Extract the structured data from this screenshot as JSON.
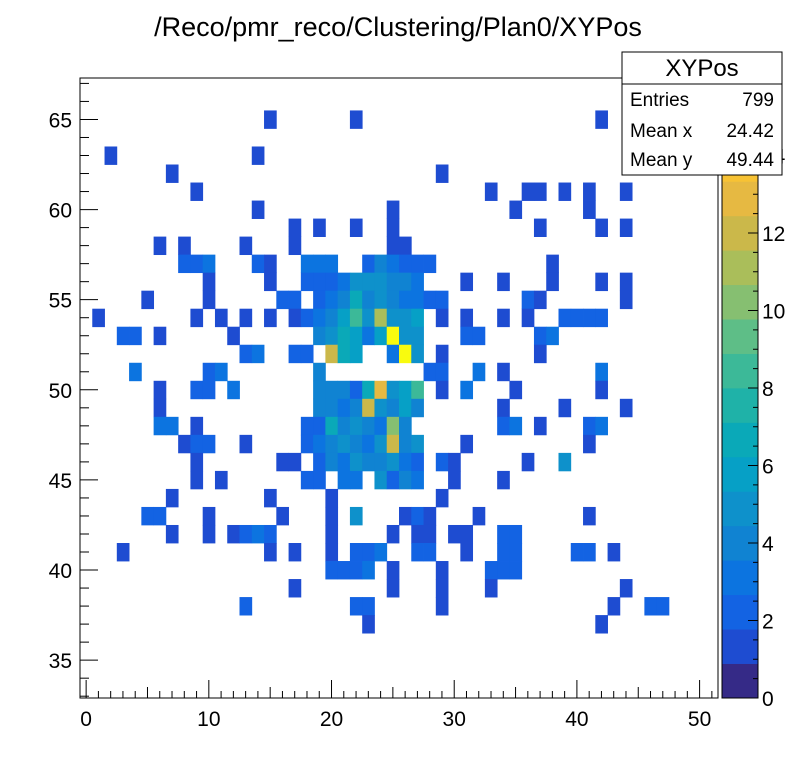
{
  "chart_data": {
    "type": "heatmap",
    "title": "/Reco/pmr_reco/Clustering/Plan0/XYPos",
    "xlim": [
      -0.5,
      51.5
    ],
    "ylim": [
      32.9,
      67.3
    ],
    "x_ticks": [
      0,
      10,
      20,
      30,
      40,
      50
    ],
    "y_ticks": [
      35,
      40,
      45,
      50,
      55,
      60,
      65
    ],
    "z_range": [
      0,
      16
    ],
    "z_ticks": [
      0,
      2,
      4,
      6,
      8,
      10,
      12,
      14
    ],
    "palette": [
      "#352a87",
      "#1e4cd1",
      "#1363e3",
      "#0c74e0",
      "#1083d2",
      "#0e91cb",
      "#06a0c6",
      "#0aa9b8",
      "#1fb2a8",
      "#3cb998",
      "#5ebe87",
      "#86bf71",
      "#aabe5a",
      "#cbb84a",
      "#e6b942",
      "#f7c234",
      "#f9e018",
      "#f9fb0e"
    ],
    "stats": {
      "name": "XYPos",
      "entries_label": "Entries",
      "entries": "799",
      "meanx_label": "Mean x",
      "meanx": "24.42",
      "meany_label": "Mean y",
      "meany": "49.44"
    },
    "cells": [
      [
        15,
        65,
        1
      ],
      [
        22,
        65,
        1
      ],
      [
        42,
        65,
        1
      ],
      [
        2,
        63,
        1
      ],
      [
        14,
        63,
        1
      ],
      [
        7,
        62,
        1
      ],
      [
        29,
        62,
        1
      ],
      [
        9,
        61,
        1
      ],
      [
        33,
        61,
        1
      ],
      [
        36,
        61,
        1
      ],
      [
        37,
        61,
        1
      ],
      [
        39,
        61,
        1
      ],
      [
        41,
        61,
        1
      ],
      [
        44,
        61,
        1
      ],
      [
        14,
        60,
        1
      ],
      [
        25,
        60,
        1
      ],
      [
        35,
        60,
        1
      ],
      [
        41,
        60,
        1
      ],
      [
        17,
        59,
        1
      ],
      [
        19,
        59,
        1
      ],
      [
        22,
        59,
        1
      ],
      [
        25,
        59,
        1
      ],
      [
        37,
        59,
        1
      ],
      [
        42,
        59,
        1
      ],
      [
        44,
        59,
        1
      ],
      [
        6,
        58,
        1
      ],
      [
        8,
        58,
        1
      ],
      [
        13,
        58,
        1
      ],
      [
        17,
        58,
        1
      ],
      [
        25,
        58,
        1
      ],
      [
        26,
        58,
        1
      ],
      [
        8,
        57,
        2
      ],
      [
        9,
        57,
        2
      ],
      [
        10,
        57,
        3
      ],
      [
        14,
        57,
        2
      ],
      [
        15,
        57,
        1
      ],
      [
        18,
        57,
        3
      ],
      [
        19,
        57,
        3
      ],
      [
        20,
        57,
        3
      ],
      [
        23,
        57,
        2
      ],
      [
        24,
        57,
        4
      ],
      [
        25,
        57,
        3
      ],
      [
        26,
        57,
        2
      ],
      [
        27,
        57,
        2
      ],
      [
        28,
        57,
        2
      ],
      [
        38,
        57,
        1
      ],
      [
        10,
        56,
        1
      ],
      [
        15,
        56,
        1
      ],
      [
        18,
        56,
        2
      ],
      [
        19,
        56,
        2
      ],
      [
        20,
        56,
        2
      ],
      [
        21,
        56,
        3
      ],
      [
        22,
        56,
        5
      ],
      [
        23,
        56,
        5
      ],
      [
        24,
        56,
        5
      ],
      [
        25,
        56,
        4
      ],
      [
        26,
        56,
        4
      ],
      [
        27,
        56,
        3
      ],
      [
        31,
        56,
        1
      ],
      [
        34,
        56,
        1
      ],
      [
        38,
        56,
        1
      ],
      [
        42,
        56,
        1
      ],
      [
        44,
        56,
        1
      ],
      [
        5,
        55,
        1
      ],
      [
        10,
        55,
        1
      ],
      [
        16,
        55,
        2
      ],
      [
        17,
        55,
        2
      ],
      [
        19,
        55,
        2
      ],
      [
        20,
        55,
        3
      ],
      [
        21,
        55,
        4
      ],
      [
        22,
        55,
        7
      ],
      [
        23,
        55,
        4
      ],
      [
        24,
        55,
        5
      ],
      [
        25,
        55,
        4
      ],
      [
        26,
        55,
        3
      ],
      [
        27,
        55,
        3
      ],
      [
        28,
        55,
        2
      ],
      [
        29,
        55,
        2
      ],
      [
        36,
        55,
        2
      ],
      [
        37,
        55,
        1
      ],
      [
        44,
        55,
        1
      ],
      [
        1,
        54,
        1
      ],
      [
        9,
        54,
        1
      ],
      [
        11,
        54,
        1
      ],
      [
        13,
        54,
        1
      ],
      [
        15,
        54,
        1
      ],
      [
        17,
        54,
        1
      ],
      [
        18,
        54,
        2
      ],
      [
        19,
        54,
        3
      ],
      [
        20,
        54,
        4
      ],
      [
        21,
        54,
        6
      ],
      [
        22,
        54,
        8
      ],
      [
        23,
        54,
        5
      ],
      [
        24,
        54,
        11
      ],
      [
        25,
        54,
        5
      ],
      [
        26,
        54,
        5
      ],
      [
        27,
        54,
        6
      ],
      [
        29,
        54,
        1
      ],
      [
        31,
        54,
        1
      ],
      [
        34,
        54,
        1
      ],
      [
        36,
        54,
        1
      ],
      [
        39,
        54,
        2
      ],
      [
        40,
        54,
        2
      ],
      [
        41,
        54,
        2
      ],
      [
        42,
        54,
        2
      ],
      [
        3,
        53,
        2
      ],
      [
        4,
        53,
        2
      ],
      [
        6,
        53,
        1
      ],
      [
        12,
        53,
        1
      ],
      [
        19,
        53,
        4
      ],
      [
        20,
        53,
        5
      ],
      [
        21,
        53,
        7
      ],
      [
        22,
        53,
        6
      ],
      [
        23,
        53,
        3
      ],
      [
        24,
        53,
        6
      ],
      [
        25,
        53,
        17
      ],
      [
        26,
        53,
        5
      ],
      [
        27,
        53,
        5
      ],
      [
        31,
        53,
        2
      ],
      [
        32,
        53,
        2
      ],
      [
        37,
        53,
        2
      ],
      [
        38,
        53,
        3
      ],
      [
        13,
        52,
        2
      ],
      [
        14,
        52,
        3
      ],
      [
        17,
        52,
        2
      ],
      [
        18,
        52,
        2
      ],
      [
        20,
        52,
        12
      ],
      [
        21,
        52,
        7
      ],
      [
        22,
        52,
        6
      ],
      [
        25,
        52,
        3
      ],
      [
        26,
        52,
        17
      ],
      [
        27,
        52,
        5
      ],
      [
        29,
        52,
        1
      ],
      [
        37,
        52,
        1
      ],
      [
        4,
        51,
        3
      ],
      [
        10,
        51,
        2
      ],
      [
        11,
        51,
        3
      ],
      [
        19,
        51,
        4
      ],
      [
        28,
        51,
        2
      ],
      [
        29,
        51,
        2
      ],
      [
        32,
        51,
        3
      ],
      [
        34,
        51,
        1
      ],
      [
        42,
        51,
        3
      ],
      [
        6,
        50,
        1
      ],
      [
        9,
        50,
        2
      ],
      [
        10,
        50,
        2
      ],
      [
        12,
        50,
        3
      ],
      [
        19,
        50,
        4
      ],
      [
        20,
        50,
        4
      ],
      [
        21,
        50,
        4
      ],
      [
        22,
        50,
        2
      ],
      [
        23,
        50,
        7
      ],
      [
        24,
        50,
        13
      ],
      [
        25,
        50,
        5
      ],
      [
        26,
        50,
        6
      ],
      [
        27,
        50,
        8
      ],
      [
        29,
        50,
        1
      ],
      [
        31,
        50,
        3
      ],
      [
        35,
        50,
        1
      ],
      [
        42,
        50,
        1
      ],
      [
        6,
        49,
        1
      ],
      [
        19,
        49,
        4
      ],
      [
        20,
        49,
        4
      ],
      [
        21,
        49,
        3
      ],
      [
        22,
        49,
        4
      ],
      [
        23,
        49,
        12
      ],
      [
        24,
        49,
        5
      ],
      [
        25,
        49,
        4
      ],
      [
        26,
        49,
        6
      ],
      [
        27,
        49,
        4
      ],
      [
        34,
        49,
        1
      ],
      [
        39,
        49,
        1
      ],
      [
        44,
        49,
        1
      ],
      [
        6,
        48,
        3
      ],
      [
        7,
        48,
        3
      ],
      [
        9,
        48,
        1
      ],
      [
        18,
        48,
        2
      ],
      [
        19,
        48,
        2
      ],
      [
        20,
        48,
        7
      ],
      [
        21,
        48,
        4
      ],
      [
        22,
        48,
        5
      ],
      [
        23,
        48,
        4
      ],
      [
        24,
        48,
        3
      ],
      [
        25,
        48,
        10
      ],
      [
        26,
        48,
        4
      ],
      [
        34,
        48,
        2
      ],
      [
        35,
        48,
        3
      ],
      [
        37,
        48,
        1
      ],
      [
        41,
        48,
        2
      ],
      [
        42,
        48,
        3
      ],
      [
        8,
        47,
        1
      ],
      [
        9,
        47,
        2
      ],
      [
        10,
        47,
        2
      ],
      [
        13,
        47,
        1
      ],
      [
        18,
        47,
        2
      ],
      [
        19,
        47,
        3
      ],
      [
        20,
        47,
        4
      ],
      [
        21,
        47,
        5
      ],
      [
        22,
        47,
        4
      ],
      [
        23,
        47,
        3
      ],
      [
        24,
        47,
        5
      ],
      [
        25,
        47,
        12
      ],
      [
        26,
        47,
        4
      ],
      [
        27,
        47,
        5
      ],
      [
        31,
        47,
        1
      ],
      [
        41,
        47,
        1
      ],
      [
        9,
        46,
        1
      ],
      [
        16,
        46,
        1
      ],
      [
        17,
        46,
        1
      ],
      [
        19,
        46,
        2
      ],
      [
        20,
        46,
        4
      ],
      [
        21,
        46,
        3
      ],
      [
        22,
        46,
        5
      ],
      [
        23,
        46,
        4
      ],
      [
        24,
        46,
        4
      ],
      [
        25,
        46,
        5
      ],
      [
        26,
        46,
        3
      ],
      [
        27,
        46,
        2
      ],
      [
        29,
        46,
        2
      ],
      [
        30,
        46,
        1
      ],
      [
        36,
        46,
        1
      ],
      [
        39,
        46,
        5
      ],
      [
        9,
        45,
        1
      ],
      [
        11,
        45,
        1
      ],
      [
        18,
        45,
        2
      ],
      [
        19,
        45,
        2
      ],
      [
        21,
        45,
        3
      ],
      [
        22,
        45,
        3
      ],
      [
        24,
        45,
        5
      ],
      [
        25,
        45,
        2
      ],
      [
        26,
        45,
        4
      ],
      [
        27,
        45,
        3
      ],
      [
        30,
        45,
        1
      ],
      [
        34,
        45,
        1
      ],
      [
        7,
        44,
        1
      ],
      [
        15,
        44,
        1
      ],
      [
        20,
        44,
        1
      ],
      [
        29,
        44,
        1
      ],
      [
        5,
        43,
        2
      ],
      [
        6,
        43,
        2
      ],
      [
        10,
        43,
        1
      ],
      [
        16,
        43,
        1
      ],
      [
        20,
        43,
        1
      ],
      [
        22,
        43,
        5
      ],
      [
        26,
        43,
        1
      ],
      [
        27,
        43,
        2
      ],
      [
        28,
        43,
        1
      ],
      [
        32,
        43,
        1
      ],
      [
        41,
        43,
        1
      ],
      [
        7,
        42,
        1
      ],
      [
        10,
        42,
        1
      ],
      [
        12,
        42,
        1
      ],
      [
        13,
        42,
        2
      ],
      [
        14,
        42,
        3
      ],
      [
        15,
        42,
        2
      ],
      [
        20,
        42,
        1
      ],
      [
        25,
        42,
        1
      ],
      [
        27,
        42,
        1
      ],
      [
        28,
        42,
        1
      ],
      [
        30,
        42,
        1
      ],
      [
        31,
        42,
        1
      ],
      [
        34,
        42,
        2
      ],
      [
        35,
        42,
        2
      ],
      [
        3,
        41,
        1
      ],
      [
        15,
        41,
        1
      ],
      [
        17,
        41,
        1
      ],
      [
        20,
        41,
        1
      ],
      [
        22,
        41,
        2
      ],
      [
        23,
        41,
        2
      ],
      [
        24,
        41,
        3
      ],
      [
        27,
        41,
        2
      ],
      [
        28,
        41,
        2
      ],
      [
        31,
        41,
        1
      ],
      [
        34,
        41,
        2
      ],
      [
        35,
        41,
        2
      ],
      [
        40,
        41,
        2
      ],
      [
        41,
        41,
        2
      ],
      [
        43,
        41,
        1
      ],
      [
        20,
        40,
        2
      ],
      [
        21,
        40,
        2
      ],
      [
        22,
        40,
        2
      ],
      [
        23,
        40,
        3
      ],
      [
        25,
        40,
        1
      ],
      [
        29,
        40,
        1
      ],
      [
        33,
        40,
        2
      ],
      [
        34,
        40,
        2
      ],
      [
        35,
        40,
        2
      ],
      [
        17,
        39,
        1
      ],
      [
        25,
        39,
        1
      ],
      [
        29,
        39,
        1
      ],
      [
        33,
        39,
        1
      ],
      [
        44,
        39,
        1
      ],
      [
        13,
        38,
        2
      ],
      [
        22,
        38,
        2
      ],
      [
        23,
        38,
        2
      ],
      [
        29,
        38,
        1
      ],
      [
        43,
        38,
        1
      ],
      [
        46,
        38,
        2
      ],
      [
        47,
        38,
        2
      ],
      [
        23,
        37,
        1
      ],
      [
        42,
        37,
        1
      ]
    ]
  }
}
